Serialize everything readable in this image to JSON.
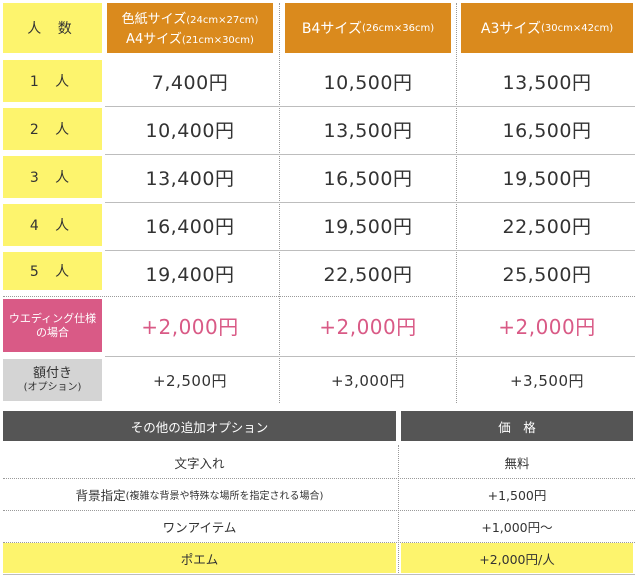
{
  "header": {
    "people_label": "人 数",
    "col1_line1": "色紙サイズ",
    "col1_line1_size": "(24cm×27cm)",
    "col1_line2": "A4サイズ",
    "col1_line2_size": "(21cm×30cm)",
    "col2": "B4サイズ",
    "col2_size": "(26cm×36cm)",
    "col3": "A3サイズ",
    "col3_size": "(30cm×42cm)"
  },
  "rows": [
    {
      "label": "1 人",
      "p1": "7,400円",
      "p2": "10,500円",
      "p3": "13,500円"
    },
    {
      "label": "2 人",
      "p1": "10,400円",
      "p2": "13,500円",
      "p3": "16,500円"
    },
    {
      "label": "3 人",
      "p1": "13,400円",
      "p2": "16,500円",
      "p3": "19,500円"
    },
    {
      "label": "4 人",
      "p1": "16,400円",
      "p2": "19,500円",
      "p3": "22,500円"
    },
    {
      "label": "5 人",
      "p1": "19,400円",
      "p2": "22,500円",
      "p3": "25,500円"
    }
  ],
  "wedding": {
    "label_line1": "ウエディング仕様",
    "label_line2": "の場合",
    "p1": "+2,000円",
    "p2": "+2,000円",
    "p3": "+2,000円"
  },
  "frame": {
    "label_line1": "額付き",
    "label_line2": "(オプション)",
    "p1": "+2,500円",
    "p2": "+3,000円",
    "p3": "+3,500円"
  },
  "options": {
    "header_name": "その他の追加オプション",
    "header_price": "価　格",
    "items": [
      {
        "name": "文字入れ",
        "note": "",
        "price": "無料"
      },
      {
        "name": "背景指定",
        "note": "(複雑な背景や特殊な場所を指定される場合)",
        "price": "+1,500円"
      },
      {
        "name": "ワンアイテム",
        "note": "",
        "price": "+1,000円〜"
      },
      {
        "name": "ポエム",
        "note": "",
        "price": "+2,000円/人"
      }
    ]
  },
  "colors": {
    "yellow": "#fdf46d",
    "orange": "#da8a1d",
    "pink": "#d95a86",
    "grey": "#d4d4d4",
    "dark": "#555555"
  }
}
